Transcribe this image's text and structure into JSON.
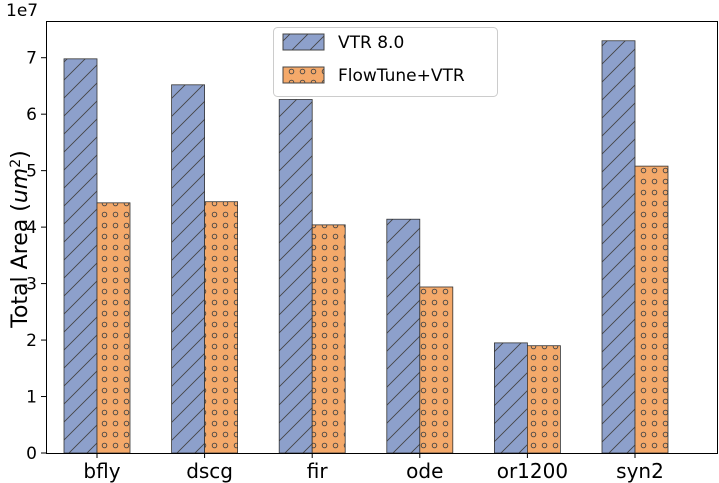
{
  "chart_data": {
    "type": "bar",
    "title": "",
    "xlabel": "",
    "ylabel": "Total Area",
    "ylabel_unit_base": "um",
    "ylabel_unit_exp": "2",
    "y_scale_label": "1e7",
    "y_scale": 10000000,
    "ylim": [
      0,
      7.65
    ],
    "yticks": [
      0,
      1,
      2,
      3,
      4,
      5,
      6,
      7
    ],
    "categories": [
      "bfly",
      "dscg",
      "fir",
      "ode",
      "or1200",
      "syn2"
    ],
    "series": [
      {
        "name": "VTR 8.0",
        "color": "#8da0cb",
        "hatch": "diagonal",
        "values": [
          6.98,
          6.52,
          6.26,
          4.14,
          1.95,
          7.3
        ]
      },
      {
        "name": "FlowTune+VTR",
        "color": "#f4a96a",
        "hatch": "circles",
        "values": [
          4.43,
          4.45,
          4.04,
          2.94,
          1.9,
          5.08
        ]
      }
    ],
    "legend_position": "top-center",
    "grid": false
  }
}
